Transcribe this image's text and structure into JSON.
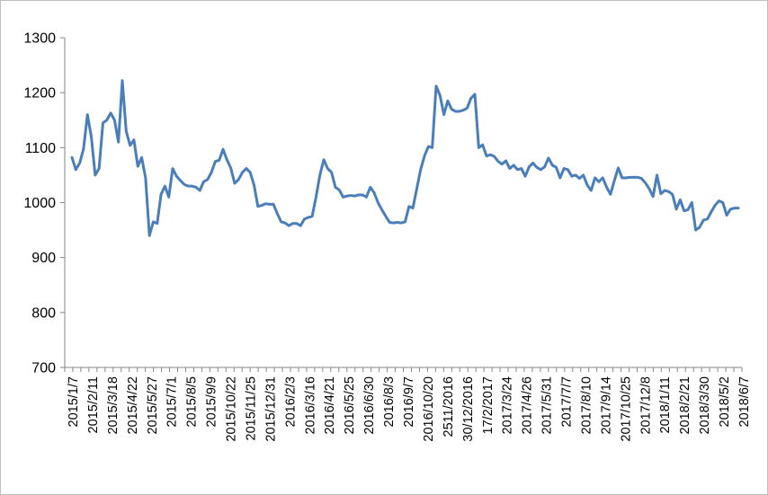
{
  "chart_data": {
    "type": "line",
    "title": "",
    "xlabel": "",
    "ylabel": "",
    "ylim": [
      700,
      1300
    ],
    "yticks": [
      700,
      800,
      900,
      1000,
      1100,
      1200,
      1300
    ],
    "grid": false,
    "legend": "none",
    "line_color": "#4a7ebb",
    "x_tick_labels": [
      "2015/1/7",
      "2015/2/11",
      "2015/3/18",
      "2015/4/22",
      "2015/5/27",
      "2015/7/1",
      "2015/8/5",
      "2015/9/9",
      "2015/10/22",
      "2015/11/25",
      "2015/12/31",
      "2016/2/3",
      "2016/3/16",
      "2016/4/21",
      "2016/5/25",
      "2016/6/30",
      "2016/8/3",
      "2016/9/7",
      "2016/10/20",
      "2511/2016",
      "30/12/2016",
      "17/2/2017",
      "2017/3/24",
      "2017/4/26",
      "2017/5/31",
      "2017/7/7",
      "2017/8/10",
      "2017/9/14",
      "2017/10/25",
      "2017/12/8",
      "2018/1/11",
      "2018/2/21",
      "2018/3/30",
      "2018/5/2",
      "2018/6/7"
    ],
    "series": [
      {
        "values": [
          1082,
          1060,
          1072,
          1098,
          1160,
          1120,
          1050,
          1062,
          1145,
          1150,
          1163,
          1150,
          1110,
          1222,
          1130,
          1104,
          1114,
          1066,
          1082,
          1045,
          940,
          965,
          962,
          1015,
          1030,
          1010,
          1062,
          1048,
          1040,
          1033,
          1030,
          1030,
          1028,
          1022,
          1038,
          1042,
          1055,
          1075,
          1077,
          1097,
          1078,
          1063,
          1035,
          1042,
          1055,
          1062,
          1055,
          1032,
          993,
          995,
          998,
          997,
          997,
          980,
          965,
          963,
          958,
          962,
          962,
          958,
          970,
          973,
          975,
          1010,
          1050,
          1078,
          1062,
          1055,
          1028,
          1023,
          1010,
          1012,
          1013,
          1012,
          1014,
          1014,
          1010,
          1028,
          1018,
          1000,
          987,
          975,
          964,
          963,
          964,
          963,
          965,
          993,
          990,
          1025,
          1060,
          1085,
          1102,
          1100,
          1212,
          1195,
          1160,
          1185,
          1170,
          1166,
          1166,
          1168,
          1172,
          1190,
          1197,
          1100,
          1105,
          1085,
          1087,
          1084,
          1075,
          1070,
          1076,
          1062,
          1068,
          1060,
          1062,
          1048,
          1065,
          1072,
          1064,
          1060,
          1065,
          1081,
          1068,
          1064,
          1045,
          1062,
          1060,
          1048,
          1050,
          1044,
          1050,
          1032,
          1022,
          1045,
          1038,
          1045,
          1028,
          1015,
          1040,
          1063,
          1045,
          1045,
          1046,
          1046,
          1046,
          1044,
          1036,
          1025,
          1011,
          1050,
          1016,
          1022,
          1020,
          1015,
          988,
          1005,
          985,
          987,
          1000,
          950,
          955,
          968,
          970,
          983,
          995,
          1003,
          1000,
          977,
          988,
          990,
          990
        ]
      }
    ]
  }
}
